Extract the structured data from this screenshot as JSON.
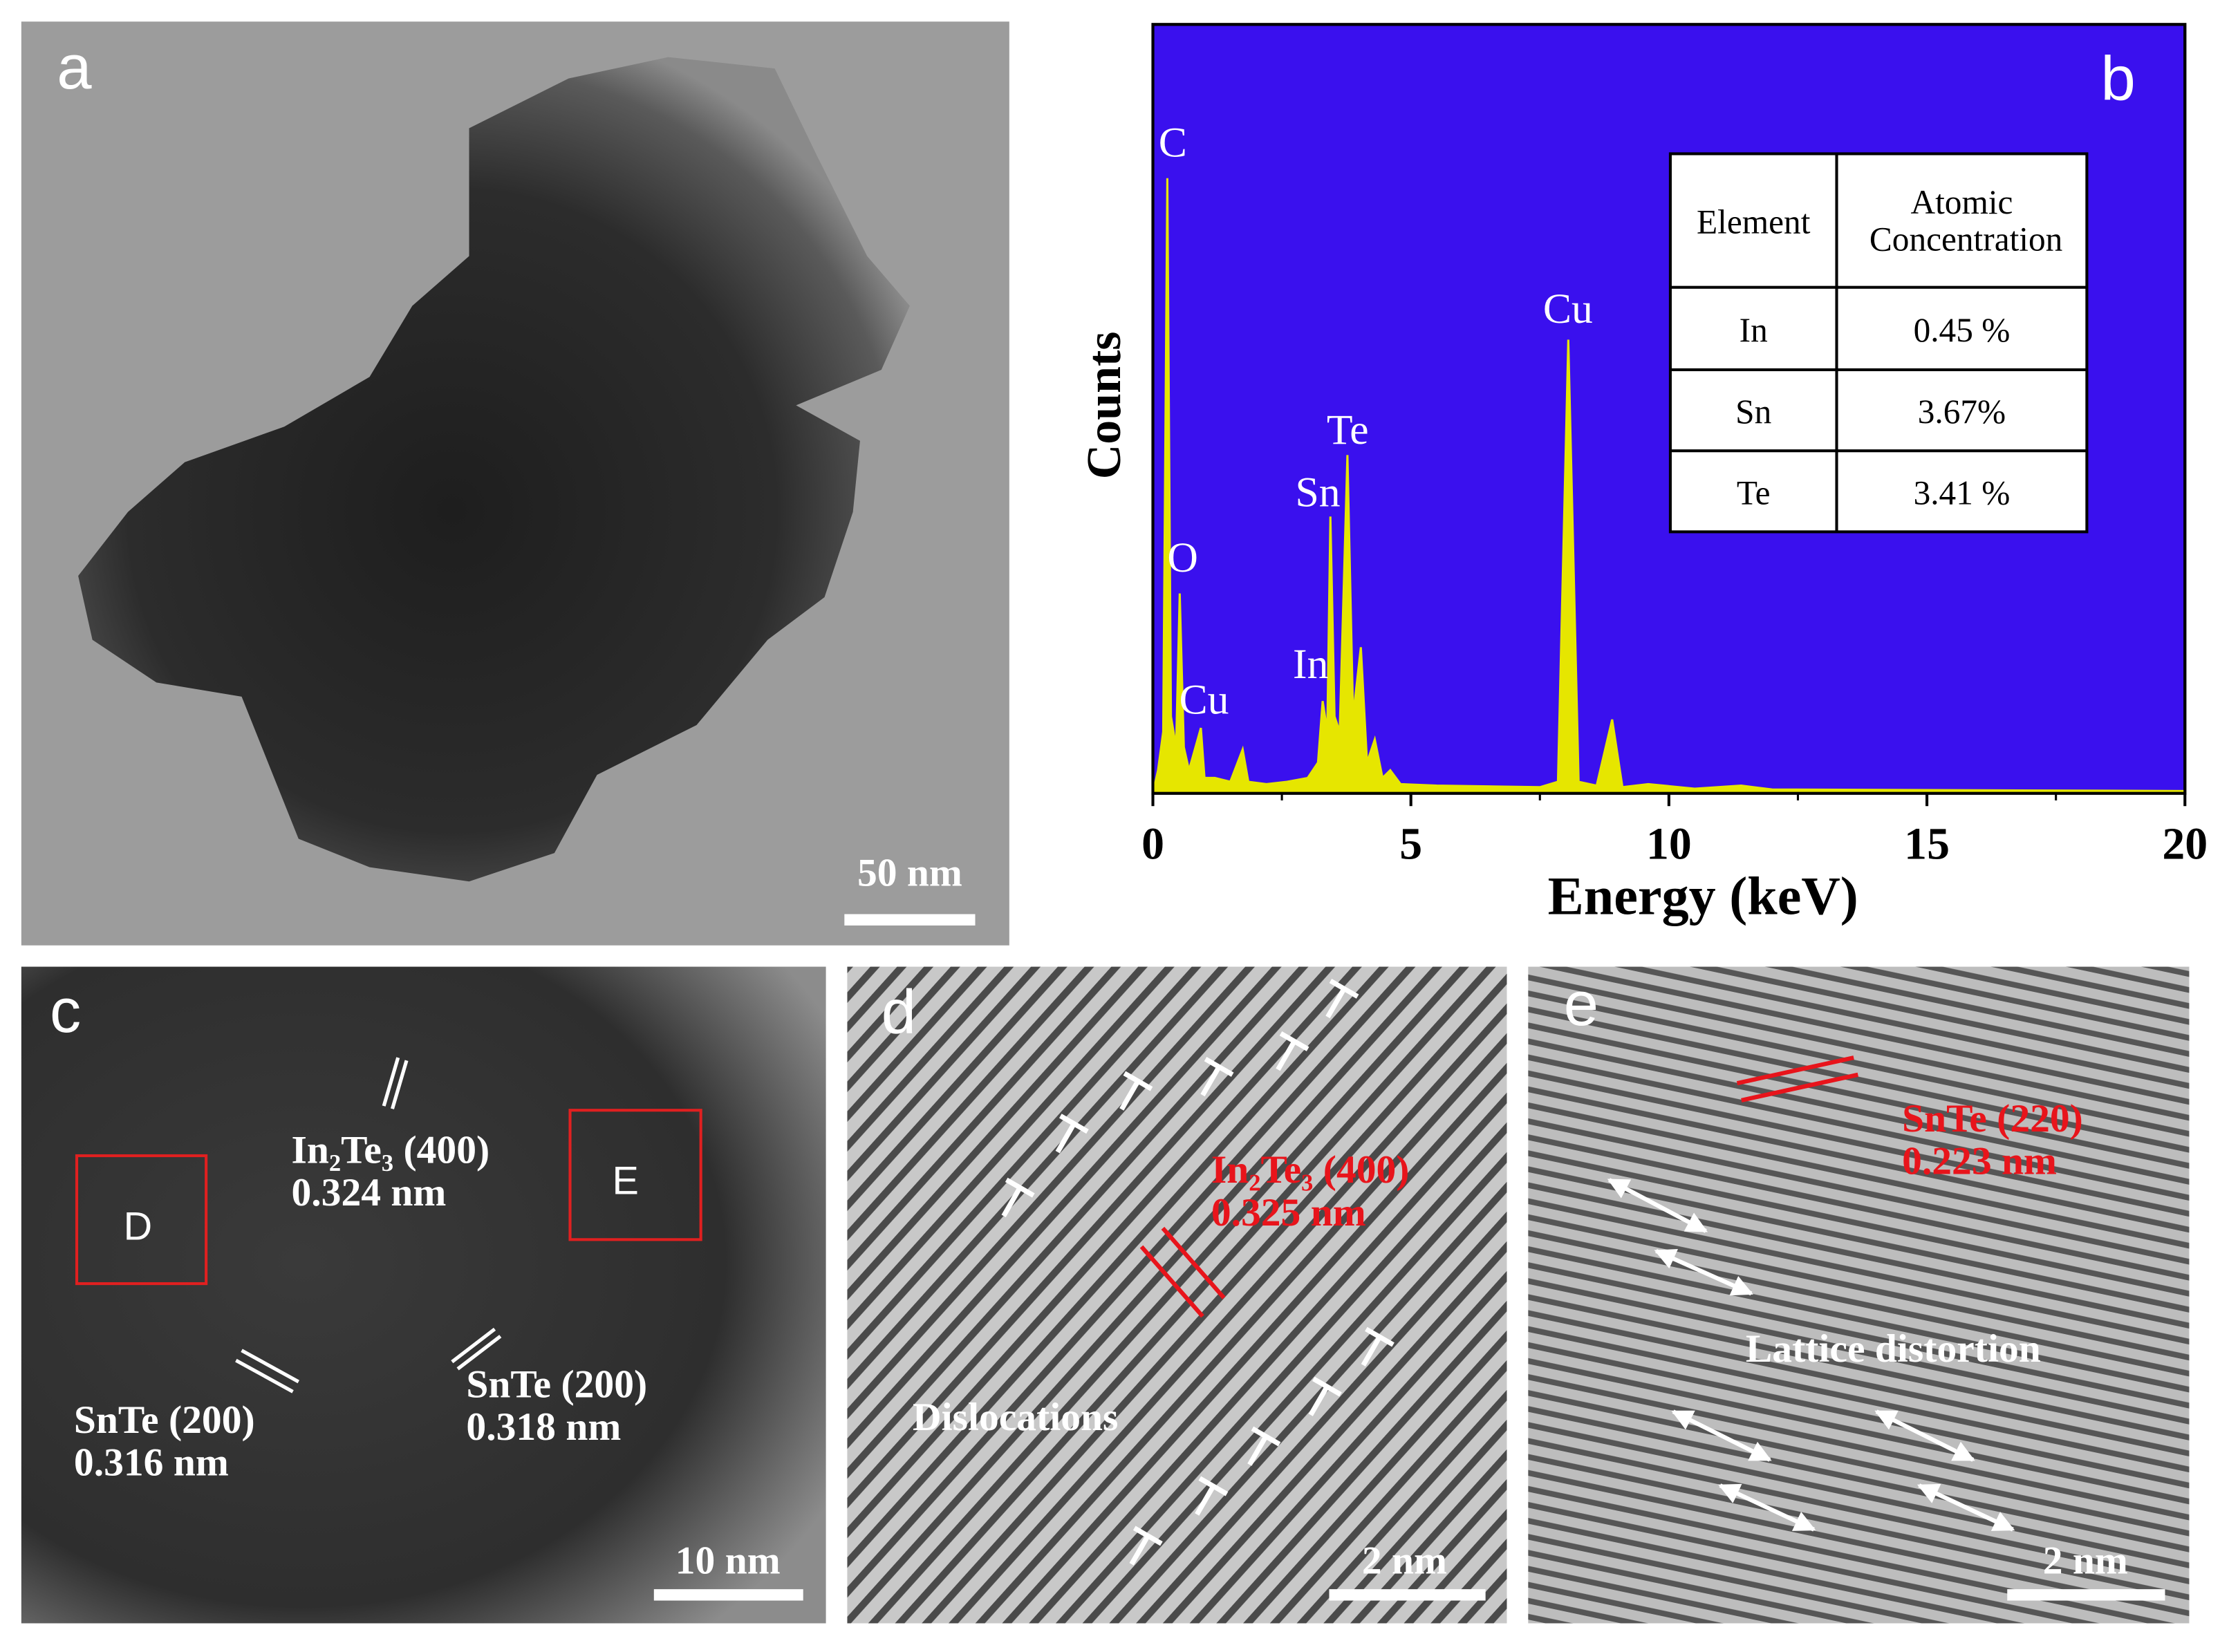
{
  "panel_a": {
    "label": "a",
    "scale_bar": "50 nm"
  },
  "chart_data": {
    "type": "line",
    "panel_label": "b",
    "xlabel": "Energy (keV)",
    "ylabel": "Counts",
    "background": "#3a10ee",
    "color": "#e6e600",
    "xlim": [
      0,
      20
    ],
    "xticks": [
      0,
      5,
      10,
      15,
      20
    ],
    "ylim": [
      0,
      100
    ],
    "x": [
      0,
      0.1,
      0.2,
      0.28,
      0.35,
      0.45,
      0.52,
      0.6,
      0.7,
      0.93,
      1.0,
      1.2,
      1.5,
      1.74,
      1.85,
      2.2,
      2.6,
      3.0,
      3.2,
      3.29,
      3.38,
      3.44,
      3.52,
      3.62,
      3.77,
      3.88,
      4.03,
      4.15,
      4.3,
      4.45,
      4.6,
      4.8,
      5.5,
      6.5,
      7.5,
      7.85,
      8.05,
      8.25,
      8.6,
      8.9,
      9.1,
      9.6,
      10.5,
      11.4,
      12,
      20
    ],
    "values": [
      0,
      3,
      8,
      80,
      10,
      6,
      26,
      6,
      3,
      8.5,
      2,
      2,
      1.5,
      5.7,
      1.5,
      1.2,
      1.5,
      2,
      4,
      12,
      8,
      36,
      10,
      8,
      44,
      10,
      19,
      4,
      7,
      2,
      3,
      1.2,
      1,
      0.9,
      0.8,
      1.5,
      59,
      1.5,
      1,
      9.6,
      0.8,
      1.2,
      0.6,
      1,
      0.5,
      0.3
    ],
    "peak_labels": [
      "C",
      "O",
      "Cu",
      "In",
      "Sn",
      "Te",
      "Cu"
    ],
    "table": {
      "header": [
        "Element",
        "Atomic Concentration"
      ],
      "rows": [
        [
          "In",
          "0.45 %"
        ],
        [
          "Sn",
          "3.67%"
        ],
        [
          "Te",
          "3.41 %"
        ]
      ]
    }
  },
  "panel_c": {
    "label": "c",
    "box_d": "D",
    "box_e": "E",
    "annotations": [
      [
        "In₂Te₃ (400)",
        "0.324 nm"
      ],
      [
        "SnTe (200)",
        "0.316 nm"
      ],
      [
        "SnTe (200)",
        "0.318 nm"
      ]
    ],
    "scale_bar": "10 nm"
  },
  "panel_d": {
    "label": "d",
    "annotation": [
      "In₂Te₃ (400)",
      "0.325 nm"
    ],
    "caption": "Dislocations",
    "scale_bar": "2 nm"
  },
  "panel_e": {
    "label": "e",
    "annotation": [
      "SnTe (220)",
      "0.223 nm"
    ],
    "caption": "Lattice distortion",
    "scale_bar": "2 nm"
  }
}
